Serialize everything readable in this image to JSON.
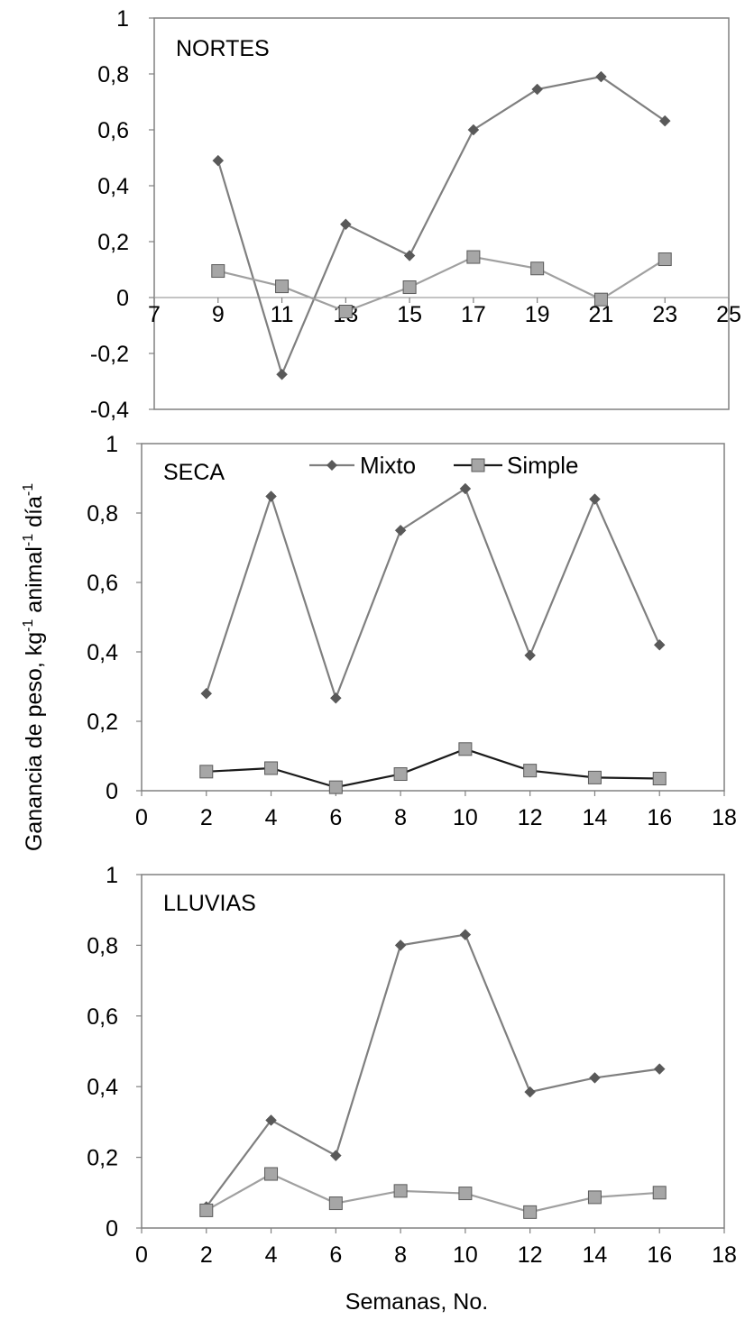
{
  "figure": {
    "ylabel_main": "Ganancia de peso, kg",
    "ylabel_sup1": "-1",
    "ylabel_mid": " animal",
    "ylabel_sup2": "-1",
    "ylabel_end": " día",
    "ylabel_sup3": "-1",
    "xlabel": "Semanas, No.",
    "colors": {
      "frame": "#808080",
      "mixto_line": "#7f7f7f",
      "mixto_marker": "#595959",
      "simple_line_light": "#a0a0a0",
      "simple_line_dark": "#1a1a1a",
      "simple_marker": "#a6a6a6",
      "zero_line": "#a0a0a0"
    }
  },
  "chart_data": [
    {
      "type": "line",
      "title": "NORTES",
      "categories_x": [
        9,
        11,
        13,
        15,
        17,
        19,
        21,
        23
      ],
      "xlim": [
        7,
        25
      ],
      "xticks": [
        "7",
        "9",
        "11",
        "13",
        "15",
        "17",
        "19",
        "21",
        "23",
        "25"
      ],
      "ylim": [
        -0.4,
        1
      ],
      "yticks": [
        "-0,4",
        "-0,2",
        "0",
        "0,2",
        "0,4",
        "0,6",
        "0,8",
        "1"
      ],
      "x_tick_position": "at y=0",
      "legend": false,
      "series": [
        {
          "name": "Mixto",
          "marker": "diamond",
          "x": [
            9,
            11,
            13,
            15,
            17,
            19,
            21,
            23
          ],
          "values": [
            0.49,
            -0.275,
            0.262,
            0.15,
            0.6,
            0.745,
            0.79,
            0.632
          ]
        },
        {
          "name": "Simple",
          "marker": "square",
          "x": [
            9,
            11,
            13,
            15,
            17,
            19,
            21,
            23
          ],
          "values": [
            0.095,
            0.04,
            -0.05,
            0.037,
            0.145,
            0.104,
            -0.007,
            0.137
          ]
        }
      ]
    },
    {
      "type": "line",
      "title": "SECA",
      "xlim": [
        0,
        18
      ],
      "xticks": [
        "0",
        "2",
        "4",
        "6",
        "8",
        "10",
        "12",
        "14",
        "16",
        "18"
      ],
      "ylim": [
        0,
        1
      ],
      "yticks": [
        "0",
        "0,2",
        "0,4",
        "0,6",
        "0,8",
        "1"
      ],
      "legend": true,
      "legend_position": "top-center",
      "legend_labels": [
        "Mixto",
        "Simple"
      ],
      "series": [
        {
          "name": "Mixto",
          "marker": "diamond",
          "x": [
            2,
            4,
            6,
            8,
            10,
            12,
            14,
            16
          ],
          "values": [
            0.28,
            0.848,
            0.267,
            0.75,
            0.87,
            0.39,
            0.84,
            0.42
          ]
        },
        {
          "name": "Simple",
          "marker": "square",
          "x": [
            2,
            4,
            6,
            8,
            10,
            12,
            14,
            16
          ],
          "values": [
            0.055,
            0.065,
            0.01,
            0.048,
            0.12,
            0.058,
            0.038,
            0.035
          ]
        }
      ]
    },
    {
      "type": "line",
      "title": "LLUVIAS",
      "xlim": [
        0,
        18
      ],
      "xticks": [
        "0",
        "2",
        "4",
        "6",
        "8",
        "10",
        "12",
        "14",
        "16",
        "18"
      ],
      "ylim": [
        0,
        1
      ],
      "yticks": [
        "0",
        "0,2",
        "0,4",
        "0,6",
        "0,8",
        "1"
      ],
      "legend": false,
      "series": [
        {
          "name": "Mixto",
          "marker": "diamond",
          "x": [
            2,
            4,
            6,
            8,
            10,
            12,
            14,
            16
          ],
          "values": [
            0.06,
            0.305,
            0.205,
            0.8,
            0.83,
            0.385,
            0.425,
            0.45
          ]
        },
        {
          "name": "Simple",
          "marker": "square",
          "x": [
            2,
            4,
            6,
            8,
            10,
            12,
            14,
            16
          ],
          "values": [
            0.05,
            0.153,
            0.07,
            0.105,
            0.098,
            0.045,
            0.087,
            0.1
          ]
        }
      ]
    }
  ]
}
